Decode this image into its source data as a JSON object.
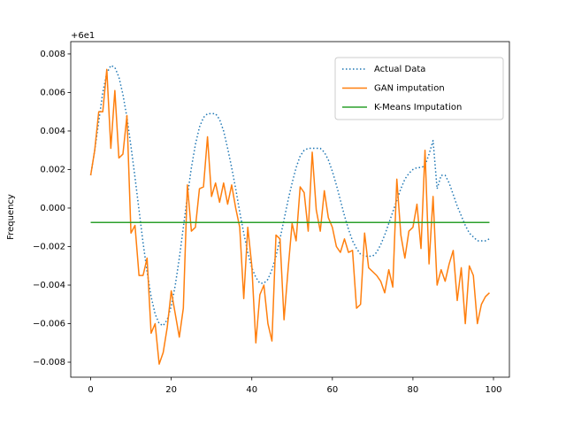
{
  "chart_data": {
    "type": "line",
    "y_label": "Frequency",
    "y_offset_text": "+6e1",
    "x": [
      0,
      1,
      2,
      3,
      4,
      5,
      6,
      7,
      8,
      9,
      10,
      11,
      12,
      13,
      14,
      15,
      16,
      17,
      18,
      19,
      20,
      21,
      22,
      23,
      24,
      25,
      26,
      27,
      28,
      29,
      30,
      31,
      32,
      33,
      34,
      35,
      36,
      37,
      38,
      39,
      40,
      41,
      42,
      43,
      44,
      45,
      46,
      47,
      48,
      49,
      50,
      51,
      52,
      53,
      54,
      55,
      56,
      57,
      58,
      59,
      60,
      61,
      62,
      63,
      64,
      65,
      66,
      67,
      68,
      69,
      70,
      71,
      72,
      73,
      74,
      75,
      76,
      77,
      78,
      79,
      80,
      81,
      82,
      83,
      84,
      85,
      86,
      87,
      88,
      89,
      90,
      91,
      92,
      93,
      94,
      95,
      96,
      97,
      98,
      99
    ],
    "series": [
      {
        "name": "Actual Data",
        "color": "#1f77b4",
        "linestyle": "dotted",
        "values": [
          0.0017,
          0.003,
          0.0045,
          0.006,
          0.007,
          0.0074,
          0.0073,
          0.0068,
          0.0059,
          0.0047,
          0.0032,
          0.0016,
          -0.0001,
          -0.0018,
          -0.0033,
          -0.0046,
          -0.0055,
          -0.006,
          -0.0061,
          -0.0058,
          -0.0051,
          -0.004,
          -0.0026,
          -0.001,
          0.0006,
          0.0021,
          0.0033,
          0.0042,
          0.0047,
          0.0049,
          0.0049,
          0.0049,
          0.0046,
          0.004,
          0.0031,
          0.0021,
          0.001,
          -0.0002,
          -0.0013,
          -0.0023,
          -0.0031,
          -0.0036,
          -0.0039,
          -0.0039,
          -0.0037,
          -0.0032,
          -0.0025,
          -0.0016,
          -0.0006,
          0.0004,
          0.0013,
          0.0021,
          0.0027,
          0.003,
          0.0031,
          0.0031,
          0.0031,
          0.0031,
          0.0029,
          0.0025,
          0.0019,
          0.0012,
          0.0004,
          -0.0004,
          -0.0011,
          -0.0017,
          -0.0021,
          -0.0024,
          -0.0025,
          -0.0025,
          -0.0025,
          -0.0023,
          -0.0019,
          -0.0014,
          -0.0008,
          -0.0002,
          0.0004,
          0.001,
          0.0015,
          0.0018,
          0.002,
          0.0021,
          0.0021,
          0.0022,
          0.0028,
          0.0035,
          0.001,
          0.0017,
          0.0017,
          0.0013,
          0.0007,
          0.0001,
          -0.0004,
          -0.0009,
          -0.0013,
          -0.0015,
          -0.0017,
          -0.0017,
          -0.0017,
          -0.0016
        ]
      },
      {
        "name": "GAN imputation",
        "color": "#ff7f0e",
        "linestyle": "solid",
        "values": [
          0.0017,
          0.003,
          0.005,
          0.005,
          0.0072,
          0.0031,
          0.0061,
          0.0026,
          0.0028,
          0.0048,
          -0.0013,
          -0.0009,
          -0.0035,
          -0.0035,
          -0.0026,
          -0.0065,
          -0.006,
          -0.0081,
          -0.0075,
          -0.0062,
          -0.0043,
          -0.0055,
          -0.0067,
          -0.0052,
          0.0012,
          -0.0012,
          -0.001,
          0.001,
          0.0011,
          0.0037,
          0.0006,
          0.0013,
          0.0003,
          0.0013,
          0.0002,
          0.0012,
          0.0,
          -0.001,
          -0.0047,
          -0.001,
          -0.003,
          -0.007,
          -0.0045,
          -0.004,
          -0.006,
          -0.0069,
          -0.0014,
          -0.0016,
          -0.0058,
          -0.0032,
          -0.0008,
          -0.0017,
          0.0011,
          0.0008,
          -0.0012,
          0.0029,
          -0.0001,
          -0.0012,
          0.0009,
          -0.0005,
          -0.001,
          -0.002,
          -0.0023,
          -0.0016,
          -0.0023,
          -0.0022,
          -0.0052,
          -0.005,
          -0.0013,
          -0.0031,
          -0.0033,
          -0.0035,
          -0.0038,
          -0.0044,
          -0.0032,
          -0.0041,
          0.0015,
          -0.0014,
          -0.0026,
          -0.0012,
          -0.001,
          0.0002,
          -0.0021,
          0.003,
          -0.0029,
          0.0006,
          -0.004,
          -0.0032,
          -0.0038,
          -0.0029,
          -0.0022,
          -0.0048,
          -0.0031,
          -0.006,
          -0.003,
          -0.0035,
          -0.006,
          -0.005,
          -0.0046,
          -0.0044
        ]
      },
      {
        "name": "K-Means Imputation",
        "color": "#2ca02c",
        "linestyle": "solid",
        "values": [
          -0.00075,
          -0.00075,
          -0.00075,
          -0.00075,
          -0.00075,
          -0.00075,
          -0.00075,
          -0.00075,
          -0.00075,
          -0.00075,
          -0.00075,
          -0.00075,
          -0.00075,
          -0.00075,
          -0.00075,
          -0.00075,
          -0.00075,
          -0.00075,
          -0.00075,
          -0.00075,
          -0.00075,
          -0.00075,
          -0.00075,
          -0.00075,
          -0.00075,
          -0.00075,
          -0.00075,
          -0.00075,
          -0.00075,
          -0.00075,
          -0.00075,
          -0.00075,
          -0.00075,
          -0.00075,
          -0.00075,
          -0.00075,
          -0.00075,
          -0.00075,
          -0.00075,
          -0.00075,
          -0.00075,
          -0.00075,
          -0.00075,
          -0.00075,
          -0.00075,
          -0.00075,
          -0.00075,
          -0.00075,
          -0.00075,
          -0.00075,
          -0.00075,
          -0.00075,
          -0.00075,
          -0.00075,
          -0.00075,
          -0.00075,
          -0.00075,
          -0.00075,
          -0.00075,
          -0.00075,
          -0.00075,
          -0.00075,
          -0.00075,
          -0.00075,
          -0.00075,
          -0.00075,
          -0.00075,
          -0.00075,
          -0.00075,
          -0.00075,
          -0.00075,
          -0.00075,
          -0.00075,
          -0.00075,
          -0.00075,
          -0.00075,
          -0.00075,
          -0.00075,
          -0.00075,
          -0.00075,
          -0.00075,
          -0.00075,
          -0.00075,
          -0.00075,
          -0.00075,
          -0.00075,
          -0.00075,
          -0.00075,
          -0.00075,
          -0.00075,
          -0.00075,
          -0.00075,
          -0.00075,
          -0.00075,
          -0.00075,
          -0.00075,
          -0.00075,
          -0.00075,
          -0.00075,
          -0.00075
        ]
      }
    ],
    "xlim": [
      -4.95,
      103.95
    ],
    "xticks": [
      0,
      20,
      40,
      60,
      80,
      100
    ],
    "ylim": [
      -0.00878,
      0.00864
    ],
    "yticks": [
      {
        "value": -0.008,
        "label": "−0.008"
      },
      {
        "value": -0.006,
        "label": "−0.006"
      },
      {
        "value": -0.004,
        "label": "−0.004"
      },
      {
        "value": -0.002,
        "label": "−0.002"
      },
      {
        "value": 0,
        "label": "0.000"
      },
      0.002,
      0.004,
      0.006,
      0.008
    ],
    "legend": "upper right",
    "grid": false
  }
}
